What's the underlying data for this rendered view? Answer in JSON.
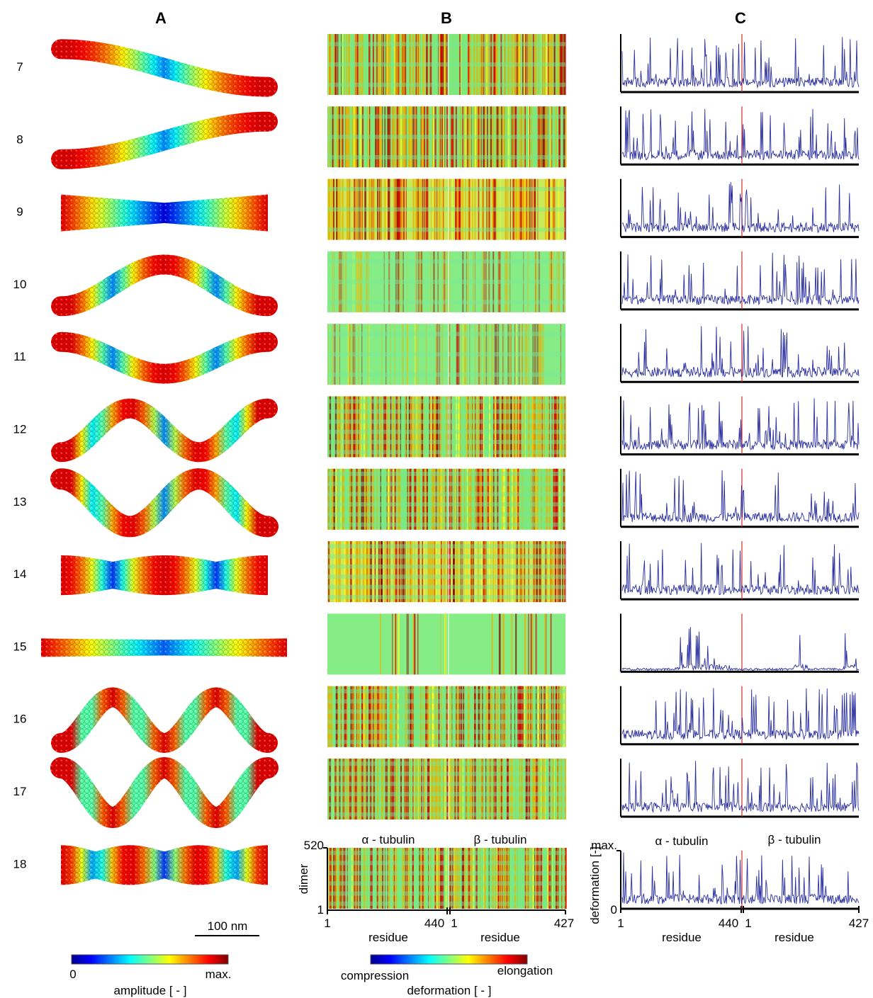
{
  "panels": {
    "a": {
      "title": "A"
    },
    "b": {
      "title": "B"
    },
    "c": {
      "title": "C"
    }
  },
  "modes": [
    "7",
    "8",
    "9",
    "10",
    "11",
    "12",
    "13",
    "14",
    "15",
    "16",
    "17",
    "18"
  ],
  "panel_a": {
    "scale_bar_label": "100 nm",
    "colorbar": {
      "min_label": "0",
      "max_label": "max.",
      "title": "amplitude [ - ]"
    }
  },
  "panel_b": {
    "alpha_label": "α - tubulin",
    "beta_label": "β - tubulin",
    "y_axis_title": "dimer",
    "y_tick_top": "520",
    "y_tick_bottom": "1",
    "x_ticks": [
      "1",
      "440",
      "1",
      "427"
    ],
    "x_axis_titles": [
      "residue",
      "residue"
    ],
    "colorbar": {
      "left_label": "compression",
      "right_label": "elongation",
      "title": "deformation [ - ]"
    }
  },
  "panel_c": {
    "alpha_label": "α - tubulin",
    "beta_label": "β - tubulin",
    "y_axis_title": "deformation [-]",
    "y_tick_top": "max.",
    "y_tick_bottom": "0",
    "x_ticks": [
      "1",
      "440",
      "1",
      "427"
    ],
    "x_axis_titles": [
      "residue",
      "residue"
    ]
  },
  "colors": {
    "line": "#2a2f9e",
    "divider": "#d62728",
    "jet": [
      "#00008f",
      "#0000ff",
      "#0080ff",
      "#00ffff",
      "#80ff80",
      "#ffff00",
      "#ff8000",
      "#ff0000",
      "#800000"
    ]
  },
  "mode_shapes": [
    {
      "mode": "7",
      "type": "bend",
      "waves": 0.5,
      "amp": 0.38,
      "sign": -1,
      "thick": 28,
      "ends": "red",
      "mid": "yellow"
    },
    {
      "mode": "8",
      "type": "bend",
      "waves": 0.5,
      "amp": 0.38,
      "sign": 1,
      "thick": 28,
      "ends": "red",
      "mid": "yellow"
    },
    {
      "mode": "9",
      "type": "twist",
      "waves": 0,
      "amp": 0,
      "sign": 1,
      "thick": 52,
      "ends": "red",
      "mid": "blue"
    },
    {
      "mode": "10",
      "type": "bend",
      "waves": 1.0,
      "amp": 0.42,
      "sign": 1,
      "thick": 28,
      "ends": "red",
      "mid": "yellow"
    },
    {
      "mode": "11",
      "type": "bend",
      "waves": 1.0,
      "amp": 0.32,
      "sign": -1,
      "thick": 28,
      "ends": "red",
      "mid": "yellow"
    },
    {
      "mode": "12",
      "type": "bend",
      "waves": 1.5,
      "amp": 0.44,
      "sign": 1,
      "thick": 28,
      "ends": "red",
      "mid": "yellow"
    },
    {
      "mode": "13",
      "type": "bend",
      "waves": 1.5,
      "amp": 0.48,
      "sign": -1,
      "thick": 30,
      "ends": "red",
      "mid": "yellow"
    },
    {
      "mode": "14",
      "type": "breath",
      "waves": 2,
      "amp": 0,
      "sign": 1,
      "thick": 56,
      "ends": "red",
      "mid": "red"
    },
    {
      "mode": "15",
      "type": "stretch",
      "waves": 0,
      "amp": 0,
      "sign": 1,
      "thick": 26,
      "ends": "red",
      "mid": "blue"
    },
    {
      "mode": "16",
      "type": "bend",
      "waves": 2.0,
      "amp": 0.46,
      "sign": 1,
      "thick": 28,
      "ends": "red",
      "mid": "yellow"
    },
    {
      "mode": "17",
      "type": "bend",
      "waves": 2.0,
      "amp": 0.5,
      "sign": -1,
      "thick": 30,
      "ends": "red",
      "mid": "yellow"
    },
    {
      "mode": "18",
      "type": "breath",
      "waves": 3,
      "amp": 0,
      "sign": 1,
      "thick": 56,
      "ends": "red",
      "mid": "red"
    }
  ],
  "heatmap_style": [
    "mixed",
    "mixed",
    "yellow",
    "green",
    "green",
    "dense",
    "dense",
    "yellow-dense",
    "sparse",
    "dense",
    "dense",
    "dense"
  ],
  "trace_style": [
    "normal",
    "normal",
    "normal",
    "normal",
    "normal",
    "normal",
    "normal",
    "normal",
    "sparse",
    "normal",
    "normal",
    "normal"
  ]
}
